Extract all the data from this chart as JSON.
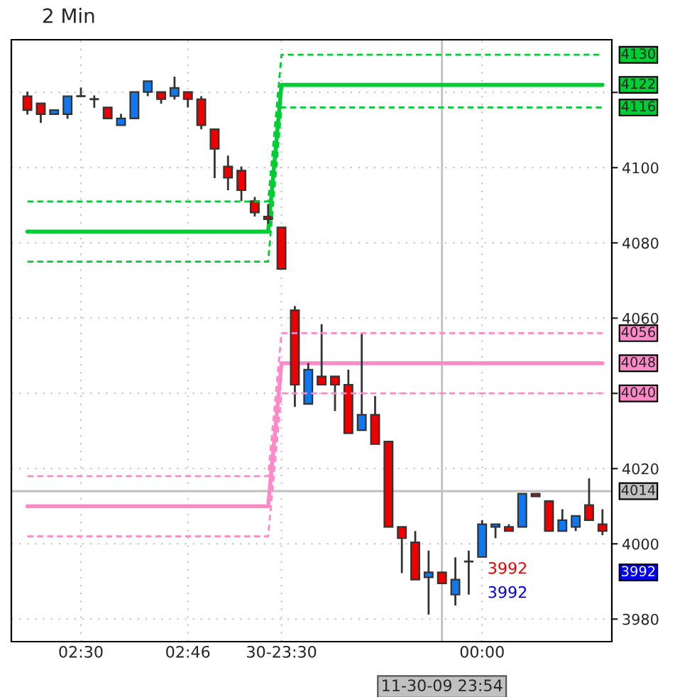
{
  "chart_data": {
    "type": "candlestick",
    "title": "2 Min",
    "categories": [
      null,
      null,
      null,
      null,
      "02:30",
      null,
      null,
      null,
      null,
      null,
      null,
      null,
      "02:46",
      null,
      null,
      null,
      null,
      null,
      null,
      "30-23:30",
      null,
      null,
      null,
      null,
      null,
      null,
      null,
      null,
      null,
      null,
      null,
      null,
      null,
      null,
      "00:00",
      null,
      null,
      null,
      null,
      null,
      null,
      null,
      null,
      null
    ],
    "ohlc": [
      [
        4119,
        4120.2,
        4114.1,
        4115.3
      ],
      [
        4117.1,
        4117.1,
        4111.9,
        4114.2
      ],
      [
        4114.2,
        4115.3,
        4114.2,
        4115.3
      ],
      [
        4114.2,
        4119,
        4113,
        4119
      ],
      [
        4119,
        4121.3,
        4119,
        4119
      ],
      [
        4118.2,
        4119.2,
        4115.9,
        4118.2
      ],
      [
        4116,
        4116,
        4113.1,
        4113.1
      ],
      [
        4111.3,
        4114.3,
        4111.3,
        4113.1
      ],
      [
        4113.1,
        4120.1,
        4113.1,
        4120.1
      ],
      [
        4120.1,
        4123,
        4119,
        4123
      ],
      [
        4120.1,
        4120.1,
        4117,
        4118.2
      ],
      [
        4119,
        4124.2,
        4118.1,
        4121.2
      ],
      [
        4120.1,
        4120.1,
        4116,
        4118.2
      ],
      [
        4118.2,
        4119,
        4110.2,
        4111.3
      ],
      [
        4110.2,
        4110.2,
        4097.2,
        4105
      ],
      [
        4100.3,
        4103.2,
        4094,
        4097.3
      ],
      [
        4099.2,
        4100.3,
        4091.1,
        4094
      ],
      [
        4091.1,
        4092.2,
        4087,
        4088.1
      ],
      [
        4087,
        4090.3,
        4085.1,
        4086.3
      ],
      [
        4084.1,
        4084.1,
        4073.1,
        4073.1
      ],
      [
        4062.1,
        4063.2,
        4036.4,
        4042.3
      ],
      [
        4037.2,
        4048.1,
        4037.2,
        4046.3
      ],
      [
        4044.5,
        4058.4,
        4042.3,
        4042.3
      ],
      [
        4044.5,
        4044.5,
        4035.3,
        4042.3
      ],
      [
        4042.3,
        4046.3,
        4029.4,
        4029.4
      ],
      [
        4030.2,
        4056.2,
        4030.2,
        4034.3
      ],
      [
        4034.3,
        4039.3,
        4026.5,
        4026.5
      ],
      [
        4027.2,
        4027.2,
        4004.5,
        4004.5
      ],
      [
        4004.5,
        4004.5,
        3992.2,
        4001.5
      ],
      [
        4000.4,
        4003.4,
        3990.5,
        3990.5
      ],
      [
        3991.1,
        3998.2,
        3981.2,
        3992.4
      ],
      [
        3992.4,
        3992.4,
        3989.5,
        3989.5
      ],
      [
        3986.5,
        3996.4,
        3983.6,
        3990.5
      ],
      [
        3995.3,
        3998.2,
        3986.5,
        3995.3
      ],
      [
        3996.5,
        4006.3,
        3996.5,
        4005.2
      ],
      [
        4004.5,
        4005.2,
        4001.5,
        4005.2
      ],
      [
        4004.5,
        4005.2,
        4003.4,
        4003.4
      ],
      [
        4004.5,
        4013.3,
        4004.5,
        4013.3
      ],
      [
        4013.3,
        4013.3,
        4012.6,
        4012.6
      ],
      [
        4011.4,
        4011.4,
        4003.4,
        4003.4
      ],
      [
        4003.4,
        4009.2,
        4003.4,
        4006.3
      ],
      [
        4004.5,
        4007.4,
        4003.4,
        4007.4
      ],
      [
        4010.3,
        4017.4,
        4006.3,
        4006.3
      ],
      [
        4005.2,
        4009.2,
        4002.3,
        4003.4
      ]
    ],
    "series": [
      {
        "type": "line",
        "color": "#00cc33",
        "line_style": "solid",
        "values": [
          4083,
          4083,
          4083,
          4083,
          4083,
          4083,
          4083,
          4083,
          4083,
          4083,
          4083,
          4083,
          4083,
          4083,
          4083,
          4083,
          4083,
          4083,
          4083,
          4122,
          4122,
          4122,
          4122,
          4122,
          4122,
          4122,
          4122,
          4122,
          4122,
          4122,
          4122,
          4122,
          4122,
          4122,
          4122,
          4122,
          4122,
          4122,
          4122,
          4122,
          4122,
          4122,
          4122,
          4122
        ],
        "value_labels": [
          null,
          null,
          null,
          null,
          null,
          null,
          null,
          null,
          null,
          null,
          null,
          null,
          null,
          null,
          null,
          null,
          null,
          null,
          null,
          null,
          null,
          null,
          null,
          null,
          null,
          null,
          null,
          null,
          null,
          null,
          null,
          null,
          null,
          null,
          null,
          null,
          null,
          null,
          null,
          null,
          null,
          null,
          null,
          "4122"
        ]
      },
      {
        "type": "line",
        "color": "#00cc33",
        "line_style": "dashed",
        "values": [
          4091,
          4091,
          4091,
          4091,
          4091,
          4091,
          4091,
          4091,
          4091,
          4091,
          4091,
          4091,
          4091,
          4091,
          4091,
          4091,
          4091,
          4091,
          4091,
          4130,
          4130,
          4130,
          4130,
          4130,
          4130,
          4130,
          4130,
          4130,
          4130,
          4130,
          4130,
          4130,
          4130,
          4130,
          4130,
          4130,
          4130,
          4130,
          4130,
          4130,
          4130,
          4130,
          4130,
          4130
        ],
        "value_labels": [
          null,
          null,
          null,
          null,
          null,
          null,
          null,
          null,
          null,
          null,
          null,
          null,
          null,
          null,
          null,
          null,
          null,
          null,
          null,
          null,
          null,
          null,
          null,
          null,
          null,
          null,
          null,
          null,
          null,
          null,
          null,
          null,
          null,
          null,
          null,
          null,
          null,
          null,
          null,
          null,
          null,
          null,
          null,
          "4130"
        ]
      },
      {
        "type": "line",
        "color": "#00cc33",
        "line_style": "dashed",
        "values": [
          4075,
          4075,
          4075,
          4075,
          4075,
          4075,
          4075,
          4075,
          4075,
          4075,
          4075,
          4075,
          4075,
          4075,
          4075,
          4075,
          4075,
          4075,
          4075,
          4116,
          4116,
          4116,
          4116,
          4116,
          4116,
          4116,
          4116,
          4116,
          4116,
          4116,
          4116,
          4116,
          4116,
          4116,
          4116,
          4116,
          4116,
          4116,
          4116,
          4116,
          4116,
          4116,
          4116,
          4116
        ],
        "value_labels": [
          null,
          null,
          null,
          null,
          null,
          null,
          null,
          null,
          null,
          null,
          null,
          null,
          null,
          null,
          null,
          null,
          null,
          null,
          null,
          null,
          null,
          null,
          null,
          null,
          null,
          null,
          null,
          null,
          null,
          null,
          null,
          null,
          null,
          null,
          null,
          null,
          null,
          null,
          null,
          null,
          null,
          null,
          null,
          "4116"
        ]
      },
      {
        "type": "line",
        "color": "#ff88c8",
        "line_style": "solid",
        "values": [
          4010,
          4010,
          4010,
          4010,
          4010,
          4010,
          4010,
          4010,
          4010,
          4010,
          4010,
          4010,
          4010,
          4010,
          4010,
          4010,
          4010,
          4010,
          4010,
          4048,
          4048,
          4048,
          4048,
          4048,
          4048,
          4048,
          4048,
          4048,
          4048,
          4048,
          4048,
          4048,
          4048,
          4048,
          4048,
          4048,
          4048,
          4048,
          4048,
          4048,
          4048,
          4048,
          4048,
          4048
        ],
        "value_labels": [
          null,
          null,
          null,
          null,
          null,
          null,
          null,
          null,
          null,
          null,
          null,
          null,
          null,
          null,
          null,
          null,
          null,
          null,
          null,
          null,
          null,
          null,
          null,
          null,
          null,
          null,
          null,
          null,
          null,
          null,
          null,
          null,
          null,
          null,
          null,
          null,
          null,
          null,
          null,
          null,
          null,
          null,
          null,
          "4048"
        ]
      },
      {
        "type": "line",
        "color": "#ff88c8",
        "line_style": "dashed",
        "values": [
          4018,
          4018,
          4018,
          4018,
          4018,
          4018,
          4018,
          4018,
          4018,
          4018,
          4018,
          4018,
          4018,
          4018,
          4018,
          4018,
          4018,
          4018,
          4018,
          4056,
          4056,
          4056,
          4056,
          4056,
          4056,
          4056,
          4056,
          4056,
          4056,
          4056,
          4056,
          4056,
          4056,
          4056,
          4056,
          4056,
          4056,
          4056,
          4056,
          4056,
          4056,
          4056,
          4056,
          4056
        ],
        "value_labels": [
          null,
          null,
          null,
          null,
          null,
          null,
          null,
          null,
          null,
          null,
          null,
          null,
          null,
          null,
          null,
          null,
          null,
          null,
          null,
          null,
          null,
          null,
          null,
          null,
          null,
          null,
          null,
          null,
          null,
          null,
          null,
          null,
          null,
          null,
          null,
          null,
          null,
          null,
          null,
          null,
          null,
          null,
          null,
          "4056"
        ]
      },
      {
        "type": "line",
        "color": "#ff88c8",
        "line_style": "dashed",
        "values": [
          4002,
          4002,
          4002,
          4002,
          4002,
          4002,
          4002,
          4002,
          4002,
          4002,
          4002,
          4002,
          4002,
          4002,
          4002,
          4002,
          4002,
          4002,
          4002,
          4040,
          4040,
          4040,
          4040,
          4040,
          4040,
          4040,
          4040,
          4040,
          4040,
          4040,
          4040,
          4040,
          4040,
          4040,
          4040,
          4040,
          4040,
          4040,
          4040,
          4040,
          4040,
          4040,
          4040,
          4040
        ],
        "value_labels": [
          null,
          null,
          null,
          null,
          null,
          null,
          null,
          null,
          null,
          null,
          null,
          null,
          null,
          null,
          null,
          null,
          null,
          null,
          null,
          null,
          null,
          null,
          null,
          null,
          null,
          null,
          null,
          null,
          null,
          null,
          null,
          null,
          null,
          null,
          null,
          null,
          null,
          null,
          null,
          null,
          null,
          null,
          null,
          "4040"
        ]
      }
    ],
    "ylim": [
      3974,
      4134
    ],
    "yticks": [
      3980,
      4000,
      4020,
      {
        "value": 4040,
        "label": null
      },
      4060,
      4080,
      4100,
      {
        "value": 4120,
        "label": null
      }
    ],
    "ref_lines": [
      {
        "axis": "y",
        "value": 4014,
        "label": "4014",
        "color": "#c0c0c0"
      }
    ],
    "annotations": [
      "3992",
      "3992",
      "3992",
      "11-30-09 23:54"
    ],
    "grid": true,
    "legend": false
  }
}
